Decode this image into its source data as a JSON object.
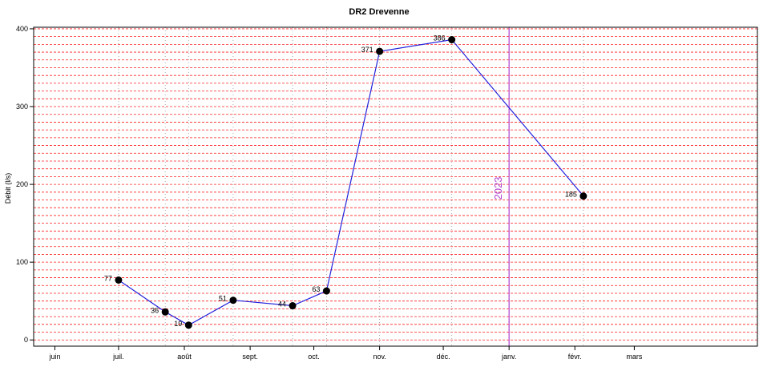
{
  "chart_data": {
    "type": "line",
    "title": "DR2 Drevenne",
    "xlabel": "",
    "ylabel": "Débit (l/s)",
    "ylim": [
      -8,
      402
    ],
    "yticks": [
      0,
      100,
      200,
      300,
      400
    ],
    "xlim": [
      "2022-05-22",
      "2023-04-28"
    ],
    "x_ticks": [
      {
        "date": "2022-06-01",
        "label": "juin"
      },
      {
        "date": "2022-07-01",
        "label": "juil."
      },
      {
        "date": "2022-08-01",
        "label": "août"
      },
      {
        "date": "2022-09-01",
        "label": "sept."
      },
      {
        "date": "2022-10-01",
        "label": "oct."
      },
      {
        "date": "2022-11-01",
        "label": "nov."
      },
      {
        "date": "2022-12-01",
        "label": "déc."
      },
      {
        "date": "2023-01-01",
        "label": "janv."
      },
      {
        "date": "2023-02-01",
        "label": "févr."
      },
      {
        "date": "2023-03-01",
        "label": "mars"
      }
    ],
    "series": [
      {
        "x": [
          "2022-07-01",
          "2022-07-23",
          "2022-08-03",
          "2022-08-24",
          "2022-09-21",
          "2022-10-07",
          "2022-11-01",
          "2022-12-05",
          "2023-02-05"
        ],
        "values": [
          77,
          36,
          19,
          51,
          44,
          63,
          371,
          386,
          185
        ],
        "color": "#2222dd",
        "point_labels": [
          "77",
          "36",
          "19",
          "51",
          "44",
          "63",
          "371",
          "386",
          "185"
        ]
      }
    ],
    "vertical_marker": {
      "date": "2023-01-01",
      "label": "2023",
      "color": "#b040d0"
    },
    "grid": {
      "horizontal": true,
      "horizontal_step": 10,
      "color": "#ff2020",
      "vertical_dotted": true
    },
    "legend": "none"
  }
}
